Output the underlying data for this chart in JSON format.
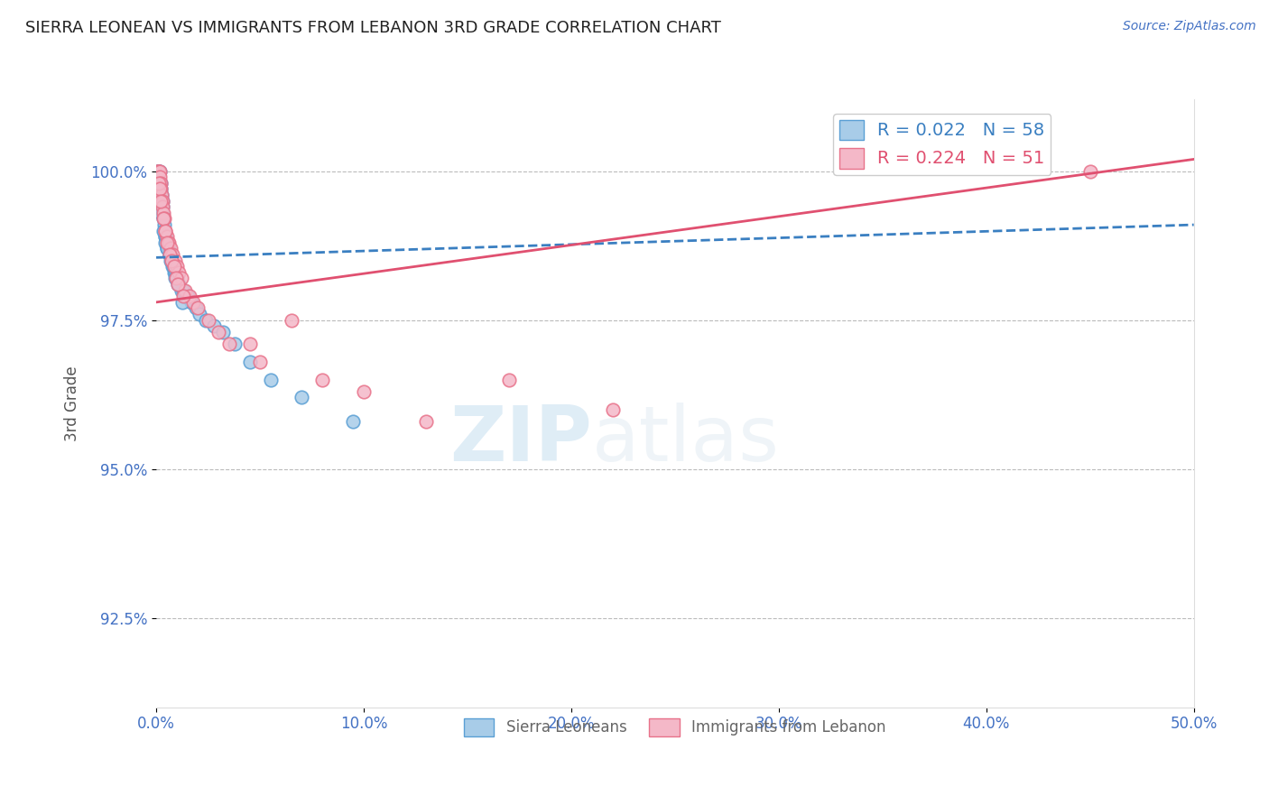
{
  "title": "SIERRA LEONEAN VS IMMIGRANTS FROM LEBANON 3RD GRADE CORRELATION CHART",
  "source_text": "Source: ZipAtlas.com",
  "ylabel": "3rd Grade",
  "watermark_zip": "ZIP",
  "watermark_atlas": "atlas",
  "xlim": [
    0.0,
    50.0
  ],
  "ylim": [
    91.0,
    101.2
  ],
  "yticks": [
    92.5,
    95.0,
    97.5,
    100.0
  ],
  "xticks": [
    0.0,
    10.0,
    20.0,
    30.0,
    40.0,
    50.0
  ],
  "legend_blue_r": "R = 0.022",
  "legend_blue_n": "N = 58",
  "legend_pink_r": "R = 0.224",
  "legend_pink_n": "N = 51",
  "blue_color": "#a8cce8",
  "pink_color": "#f4b8c8",
  "blue_edge_color": "#5a9fd4",
  "pink_edge_color": "#e8728a",
  "blue_line_color": "#3a7fc1",
  "pink_line_color": "#e05070",
  "axis_color": "#4472C4",
  "grid_color": "#bbbbbb",
  "title_color": "#222222",
  "blue_trend_x0": 0.0,
  "blue_trend_y0": 98.55,
  "blue_trend_x1": 50.0,
  "blue_trend_y1": 99.1,
  "pink_trend_x0": 0.0,
  "pink_trend_y0": 97.8,
  "pink_trend_x1": 50.0,
  "pink_trend_y1": 100.2,
  "blue_scatter_x": [
    0.05,
    0.08,
    0.1,
    0.12,
    0.15,
    0.18,
    0.2,
    0.22,
    0.25,
    0.28,
    0.3,
    0.32,
    0.35,
    0.38,
    0.4,
    0.42,
    0.45,
    0.48,
    0.5,
    0.55,
    0.6,
    0.65,
    0.7,
    0.75,
    0.8,
    0.85,
    0.9,
    0.95,
    1.0,
    1.1,
    1.2,
    1.3,
    1.4,
    1.5,
    1.7,
    1.9,
    2.1,
    2.4,
    2.8,
    3.2,
    3.8,
    4.5,
    5.5,
    7.0,
    9.5,
    0.06,
    0.13,
    0.16,
    0.23,
    0.33,
    0.43,
    0.53,
    0.63,
    0.73,
    0.83,
    0.93,
    1.05,
    1.25
  ],
  "blue_scatter_y": [
    99.9,
    100.0,
    100.0,
    100.0,
    100.0,
    99.8,
    99.7,
    99.8,
    99.6,
    99.5,
    99.4,
    99.3,
    99.2,
    99.1,
    99.0,
    98.9,
    98.9,
    98.8,
    98.7,
    98.8,
    98.7,
    98.6,
    98.5,
    98.5,
    98.4,
    98.3,
    98.3,
    98.2,
    98.2,
    98.1,
    98.0,
    98.0,
    97.9,
    97.9,
    97.8,
    97.7,
    97.6,
    97.5,
    97.4,
    97.3,
    97.1,
    96.8,
    96.5,
    96.2,
    95.8,
    99.7,
    99.8,
    99.5,
    99.3,
    99.0,
    98.8,
    98.7,
    98.6,
    98.5,
    98.4,
    98.2,
    98.1,
    97.8
  ],
  "pink_scatter_x": [
    0.05,
    0.08,
    0.1,
    0.12,
    0.15,
    0.18,
    0.2,
    0.22,
    0.25,
    0.28,
    0.3,
    0.35,
    0.4,
    0.45,
    0.5,
    0.55,
    0.6,
    0.7,
    0.8,
    0.9,
    1.0,
    1.1,
    1.2,
    1.4,
    1.6,
    1.8,
    2.0,
    2.5,
    3.0,
    3.5,
    4.5,
    5.0,
    6.5,
    8.0,
    10.0,
    13.0,
    17.0,
    22.0,
    0.13,
    0.17,
    0.23,
    0.33,
    0.43,
    0.53,
    0.65,
    0.75,
    0.85,
    0.95,
    1.05,
    1.3,
    45.0
  ],
  "pink_scatter_y": [
    99.8,
    100.0,
    100.0,
    100.0,
    100.0,
    99.9,
    99.8,
    99.7,
    99.6,
    99.5,
    99.4,
    99.3,
    99.2,
    99.0,
    98.9,
    98.8,
    98.8,
    98.7,
    98.6,
    98.5,
    98.4,
    98.3,
    98.2,
    98.0,
    97.9,
    97.8,
    97.7,
    97.5,
    97.3,
    97.1,
    97.1,
    96.8,
    97.5,
    96.5,
    96.3,
    95.8,
    96.5,
    96.0,
    99.8,
    99.7,
    99.5,
    99.2,
    99.0,
    98.8,
    98.6,
    98.5,
    98.4,
    98.2,
    98.1,
    97.9,
    100.0
  ],
  "watermark_color": "#cde4f5",
  "watermark_atlas_color": "#b8d4e8"
}
